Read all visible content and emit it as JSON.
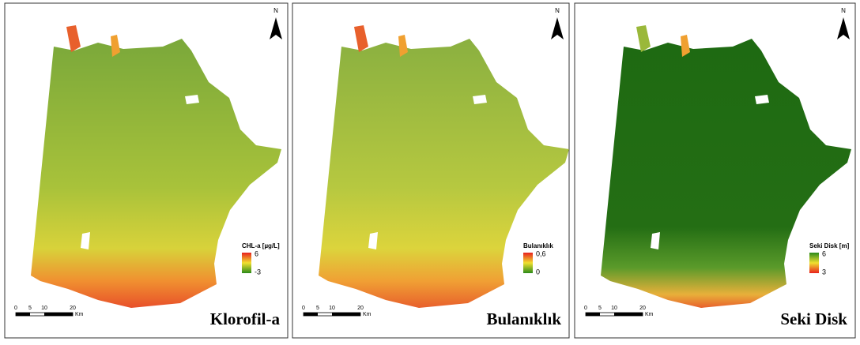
{
  "panels": [
    {
      "title": "Klorofil-a",
      "north": "N",
      "legend": {
        "title": "CHL-a [µg/L]",
        "max": "6",
        "min": "-3"
      },
      "scale": {
        "ticks": [
          "0",
          "5",
          "10",
          "20"
        ],
        "unit": "Km"
      }
    },
    {
      "title": "Bulanıklık",
      "north": "N",
      "legend": {
        "title": "Bulanıklık",
        "max": "0,6",
        "min": "0"
      },
      "scale": {
        "ticks": [
          "0",
          "5",
          "10",
          "20"
        ],
        "unit": "Km"
      }
    },
    {
      "title": "Seki Disk",
      "north": "N",
      "legend": {
        "title": "Seki Disk [m]",
        "max": "6",
        "min": "3"
      },
      "scale": {
        "ticks": [
          "0",
          "5",
          "10",
          "20"
        ],
        "unit": "Km"
      }
    }
  ]
}
